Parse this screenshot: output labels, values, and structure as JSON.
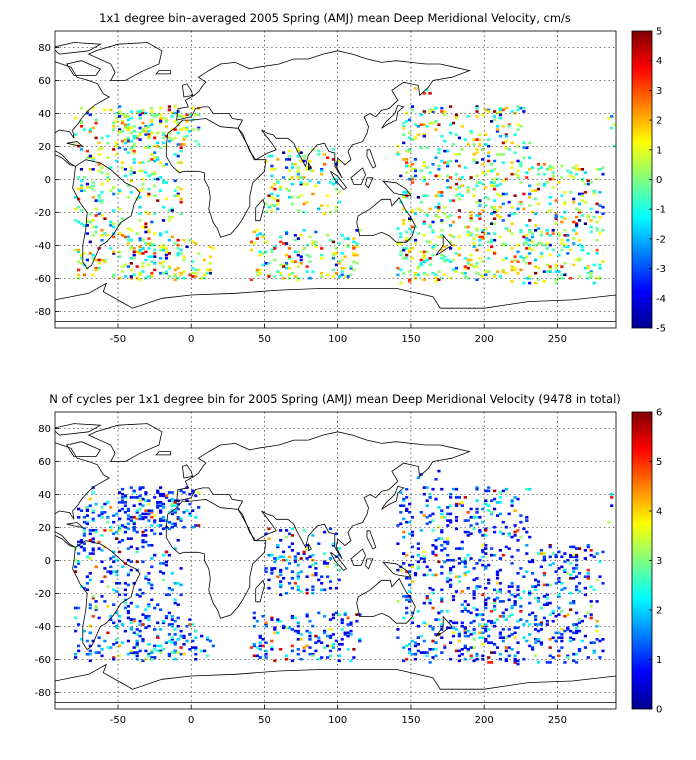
{
  "chart_data": [
    {
      "type": "heatmap",
      "title": "1x1 degree bin–averaged 2005 Spring (AMJ) mean Deep Meridional Velocity, cm/s",
      "xlabel": "",
      "ylabel": "",
      "xlim": [
        -93,
        290
      ],
      "ylim": [
        -90,
        90
      ],
      "xticks": [
        -50,
        0,
        50,
        100,
        150,
        200,
        250
      ],
      "yticks": [
        80,
        60,
        40,
        20,
        0,
        -20,
        -40,
        -60,
        -80
      ],
      "grid": true,
      "colormap": "jet",
      "colorbar": {
        "min": -5,
        "max": 5,
        "ticks": [
          5,
          4,
          3,
          2,
          1,
          0,
          -1,
          -2,
          -3,
          -4,
          -5
        ]
      }
    },
    {
      "type": "heatmap",
      "title": "N of cycles per 1x1 degree bin for 2005 Spring (AMJ) mean Deep Meridional Velocity (9478 in total)",
      "xlabel": "",
      "ylabel": "",
      "xlim": [
        -93,
        290
      ],
      "ylim": [
        -90,
        90
      ],
      "xticks": [
        -50,
        0,
        50,
        100,
        150,
        200,
        250
      ],
      "yticks": [
        80,
        60,
        40,
        20,
        0,
        -20,
        -40,
        -60,
        -80
      ],
      "grid": true,
      "colormap": "jet",
      "colorbar": {
        "min": 0,
        "max": 6,
        "ticks": [
          6,
          5,
          4,
          3,
          2,
          1,
          0
        ]
      }
    }
  ]
}
